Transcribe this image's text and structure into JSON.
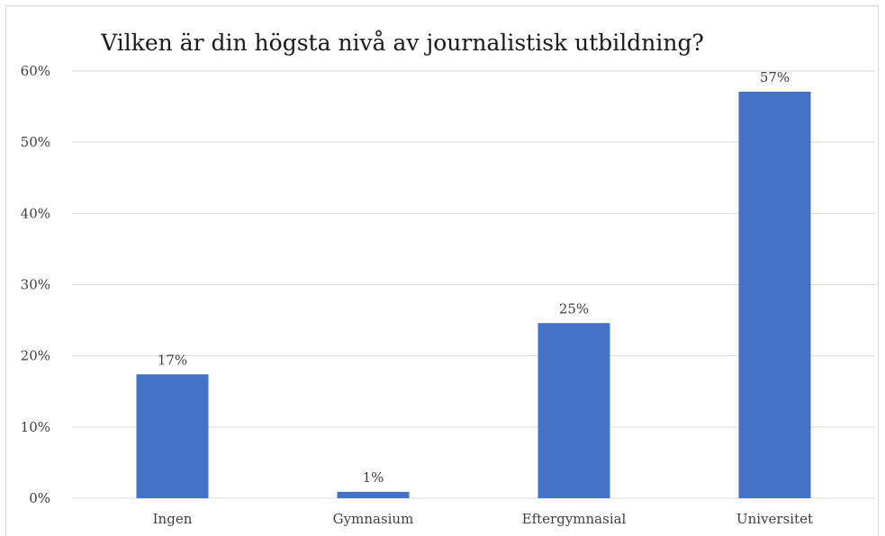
{
  "colors": {
    "bar": "#4472c4",
    "grid": "#d9d9d9",
    "text": "#404040"
  },
  "chart_data": {
    "type": "bar",
    "title": "Vilken är din högsta nivå av journalistisk utbildning?",
    "xlabel": "",
    "ylabel": "",
    "categories": [
      "Ingen",
      "Gymnasium",
      "Eftergymnasial",
      "Universitet"
    ],
    "values": [
      17.4,
      0.9,
      24.6,
      57.1
    ],
    "data_labels": [
      "17%",
      "1%",
      "25%",
      "57%"
    ],
    "ylim": [
      0,
      60
    ],
    "yticks": [
      0,
      10,
      20,
      30,
      40,
      50,
      60
    ],
    "ytick_labels": [
      "0%",
      "10%",
      "20%",
      "30%",
      "40%",
      "50%",
      "60%"
    ],
    "grid": true,
    "legend": "none"
  }
}
